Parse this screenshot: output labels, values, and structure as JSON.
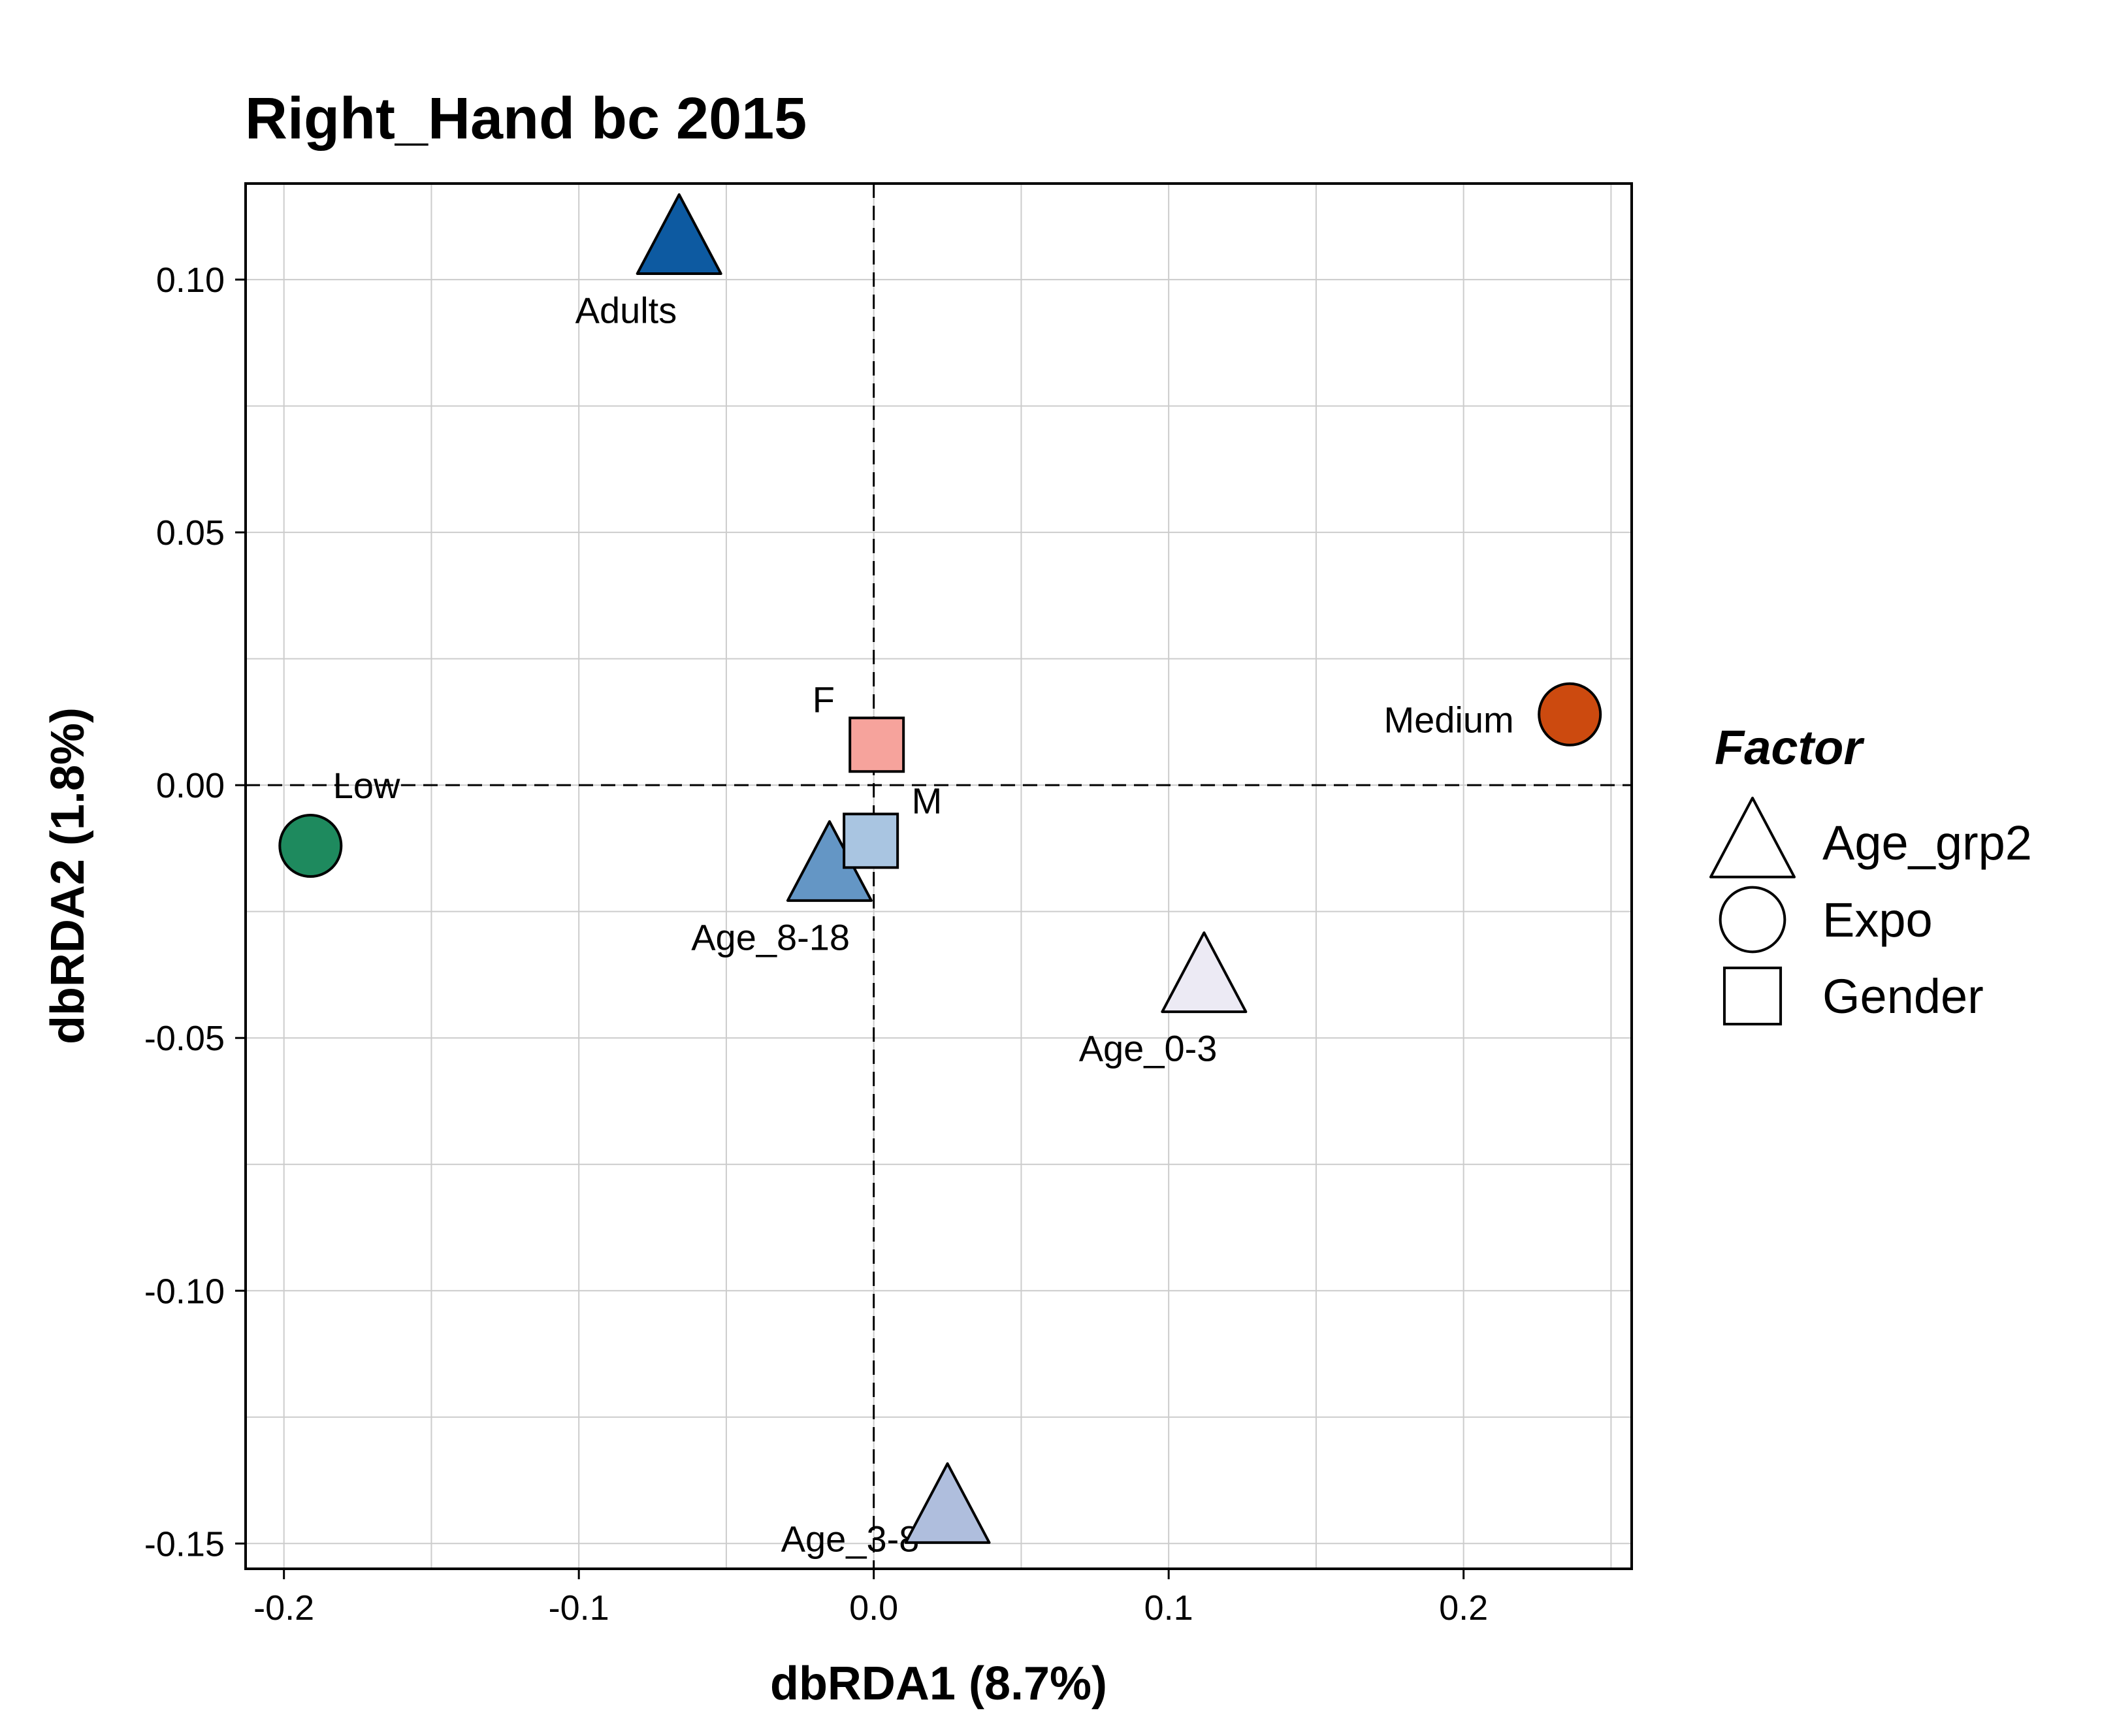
{
  "chart_data": {
    "type": "scatter",
    "title": "Right_Hand bc 2015",
    "xlabel": "dbRDA1 (8.7%)",
    "ylabel": "dbRDA2 (1.8%)",
    "xlim": [
      -0.213,
      0.257
    ],
    "ylim": [
      -0.155,
      0.119
    ],
    "x_ticks": [
      -0.2,
      -0.1,
      0.0,
      0.1,
      0.2
    ],
    "x_tick_labels": [
      "-0.2",
      "-0.1",
      "0.0",
      "0.1",
      "0.2"
    ],
    "y_ticks": [
      -0.15,
      -0.1,
      -0.05,
      0.0,
      0.05,
      0.1
    ],
    "y_tick_labels": [
      "-0.15",
      "-0.10",
      "-0.05",
      "0.00",
      "0.05",
      "0.10"
    ],
    "grid": true,
    "reference_lines": {
      "x": 0,
      "y": 0,
      "style": "dashed"
    },
    "points": [
      {
        "label": "Adults",
        "factor": "Age_grp2",
        "x": -0.066,
        "y": 0.108,
        "color": "#0D5AA1",
        "label_x": -0.084,
        "label_y": 0.094
      },
      {
        "label": "Age_8-18",
        "factor": "Age_grp2",
        "x": -0.015,
        "y": -0.016,
        "color": "#6496C5",
        "label_x": -0.035,
        "label_y": -0.03
      },
      {
        "label": "Age_0-3",
        "factor": "Age_grp2",
        "x": 0.112,
        "y": -0.038,
        "color": "#ECEAF4",
        "label_x": 0.093,
        "label_y": -0.052
      },
      {
        "label": "Age_3-8",
        "factor": "Age_grp2",
        "x": 0.025,
        "y": -0.143,
        "color": "#AFBEDD",
        "label_x": -0.008,
        "label_y": -0.149
      },
      {
        "label": "Low",
        "factor": "Expo",
        "x": -0.191,
        "y": -0.012,
        "color": "#1E8A5E",
        "label_x": -0.172,
        "label_y": 0.0
      },
      {
        "label": "Medium",
        "factor": "Expo",
        "x": 0.236,
        "y": 0.014,
        "color": "#CC4A0F",
        "label_x": 0.195,
        "label_y": 0.013
      },
      {
        "label": "F",
        "factor": "Gender",
        "x": 0.001,
        "y": 0.008,
        "color": "#F6A39C",
        "label_x": -0.017,
        "label_y": 0.017
      },
      {
        "label": "M",
        "factor": "Gender",
        "x": -0.001,
        "y": -0.011,
        "color": "#A9C5E1",
        "label_x": 0.018,
        "label_y": -0.003
      }
    ],
    "legend": {
      "title": "Factor",
      "position": "right",
      "entries": [
        {
          "label": "Age_grp2",
          "shape": "triangle"
        },
        {
          "label": "Expo",
          "shape": "circle"
        },
        {
          "label": "Gender",
          "shape": "square"
        }
      ]
    }
  }
}
